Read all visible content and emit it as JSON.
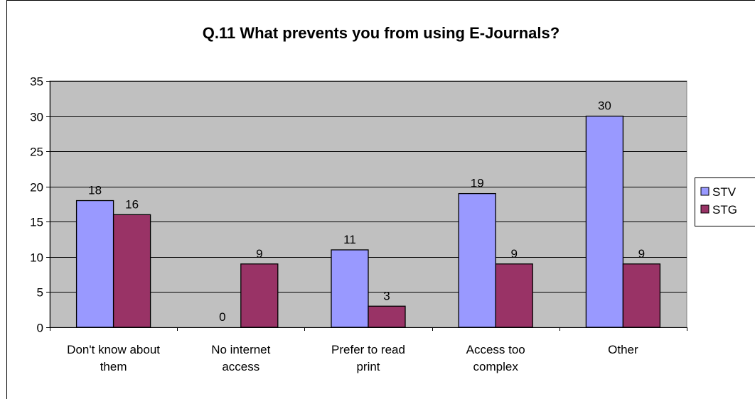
{
  "chart_data": {
    "type": "bar",
    "title": "Q.11 What prevents you from using E-Journals?",
    "xlabel": "",
    "ylabel": "",
    "categories": [
      [
        "Don't know  about",
        "them"
      ],
      [
        "No internet",
        "access"
      ],
      [
        "Prefer to read",
        "print"
      ],
      [
        "Access too",
        "complex"
      ],
      [
        "Other"
      ]
    ],
    "series": [
      {
        "name": "STV",
        "color": "#9999ff",
        "values": [
          18,
          0,
          11,
          19,
          30
        ]
      },
      {
        "name": "STG",
        "color": "#993366",
        "values": [
          16,
          9,
          3,
          9,
          9
        ]
      }
    ],
    "ylim": [
      0,
      35
    ],
    "yticks": [
      0,
      5,
      10,
      15,
      20,
      25,
      30,
      35
    ],
    "grid": true,
    "plot_background": "#c0c0c0",
    "legend_position": "right"
  }
}
